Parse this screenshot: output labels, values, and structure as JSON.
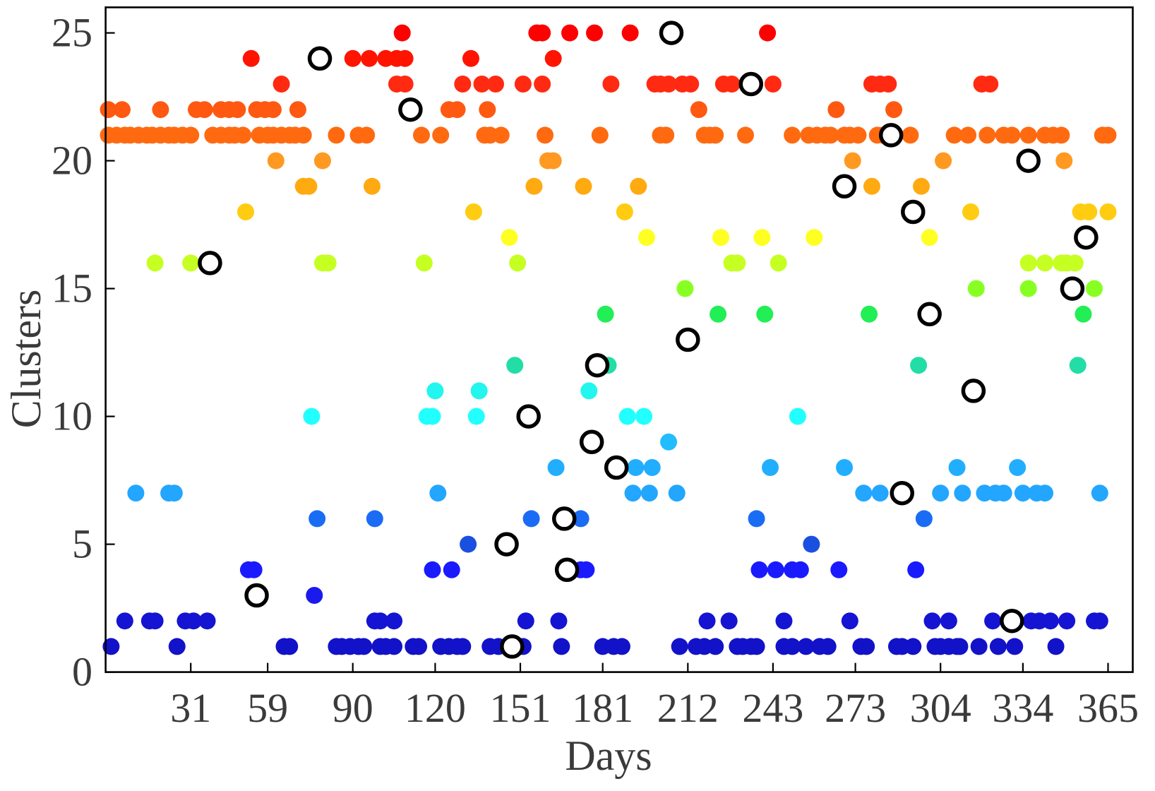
{
  "chart_data": {
    "type": "scatter",
    "xlabel": "Days",
    "ylabel": "Clusters",
    "xlim": [
      0,
      374
    ],
    "ylim": [
      0,
      26
    ],
    "xticks": [
      31,
      59,
      90,
      120,
      151,
      181,
      212,
      243,
      273,
      304,
      334,
      365
    ],
    "yticks": [
      0,
      5,
      10,
      15,
      20,
      25
    ],
    "grid": false,
    "legend": false,
    "colors": {
      "axes": "#000000",
      "text": "#3a3a3a",
      "open_circle_edge": "#000000",
      "open_circle_fill": "#ffffff",
      "cluster_colors": [
        "#1212c8",
        "#1414d2",
        "#1a1aee",
        "#1a1aff",
        "#1a50e0",
        "#1a6cf5",
        "#22a6ff",
        "#22aeff",
        "#22bcff",
        "#22ffff",
        "#22f6ee",
        "#22dda6",
        "#22e680",
        "#22ee55",
        "#88ff22",
        "#c6ff22",
        "#ffff22",
        "#ffcc11",
        "#ffaa11",
        "#ff9922",
        "#ff6a11",
        "#ff5811",
        "#ff2a11",
        "#ff1400",
        "#ff0000"
      ]
    },
    "filled_points": [
      {
        "y": 1,
        "x": [
          2,
          26,
          65,
          67,
          84,
          86,
          89,
          92,
          94,
          100,
          102,
          105,
          112,
          114,
          122,
          125,
          128,
          130,
          140,
          143,
          149,
          152,
          166,
          181,
          185,
          188,
          209,
          215,
          218,
          222,
          230,
          232,
          235,
          237,
          247,
          250,
          255,
          260,
          263,
          275,
          277,
          288,
          290,
          294,
          302,
          304,
          307,
          310,
          311,
          318,
          325,
          331,
          346
        ]
      },
      {
        "y": 2,
        "x": [
          7,
          16,
          18,
          29,
          32,
          37,
          98,
          100,
          105,
          153,
          165,
          219,
          227,
          247,
          271,
          301,
          307,
          323,
          337,
          340,
          344,
          350,
          360,
          362
        ]
      },
      {
        "y": 3,
        "x": [
          76
        ]
      },
      {
        "y": 4,
        "x": [
          52,
          54,
          119,
          126,
          173,
          175,
          238,
          244,
          250,
          253,
          267,
          295
        ]
      },
      {
        "y": 5,
        "x": [
          132,
          257
        ]
      },
      {
        "y": 6,
        "x": [
          77,
          98,
          155,
          173,
          237,
          298
        ]
      },
      {
        "y": 7,
        "x": [
          11,
          23,
          25,
          121,
          192,
          198,
          208,
          276,
          282,
          304,
          312,
          320,
          324,
          327,
          334,
          339,
          342,
          362
        ]
      },
      {
        "y": 8,
        "x": [
          164,
          193,
          199,
          242,
          269,
          310,
          332
        ]
      },
      {
        "y": 9,
        "x": [
          205
        ]
      },
      {
        "y": 10,
        "x": [
          75,
          117,
          119,
          135,
          190,
          196,
          252
        ]
      },
      {
        "y": 11,
        "x": [
          120,
          136,
          176
        ]
      },
      {
        "y": 12,
        "x": [
          149,
          183,
          296,
          354
        ]
      },
      {
        "y": 14,
        "x": [
          182,
          223,
          240,
          278,
          356
        ]
      },
      {
        "y": 15,
        "x": [
          211,
          317,
          336,
          360
        ]
      },
      {
        "y": 16,
        "x": [
          18,
          31,
          79,
          81,
          116,
          150,
          228,
          230,
          245,
          336,
          342,
          348,
          350,
          353
        ]
      },
      {
        "y": 17,
        "x": [
          147,
          197,
          224,
          239,
          258,
          300
        ]
      },
      {
        "y": 18,
        "x": [
          51,
          134,
          189,
          315,
          355,
          358,
          365
        ]
      },
      {
        "y": 19,
        "x": [
          72,
          74,
          97,
          156,
          174,
          194,
          279,
          297
        ]
      },
      {
        "y": 20,
        "x": [
          62,
          79,
          161,
          163,
          272,
          305,
          349
        ]
      },
      {
        "y": 21,
        "x": [
          1,
          4,
          7,
          9,
          12,
          15,
          17,
          20,
          23,
          25,
          28,
          31,
          39,
          42,
          45,
          47,
          50,
          56,
          59,
          61,
          64,
          67,
          69,
          72,
          84,
          92,
          95,
          115,
          122,
          138,
          140,
          144,
          160,
          180,
          202,
          204,
          218,
          220,
          222,
          233,
          250,
          256,
          259,
          262,
          264,
          269,
          271,
          274,
          281,
          283,
          293,
          309,
          314,
          321,
          327,
          330,
          336,
          342,
          345,
          348,
          363,
          365
        ]
      },
      {
        "y": 22,
        "x": [
          1,
          6,
          20,
          33,
          36,
          42,
          45,
          48,
          55,
          58,
          61,
          70,
          125,
          128,
          139,
          216,
          266,
          287
        ]
      },
      {
        "y": 23,
        "x": [
          64,
          106,
          109,
          130,
          137,
          142,
          152,
          159,
          184,
          200,
          202,
          205,
          210,
          213,
          225,
          228,
          243,
          279,
          282,
          285,
          319,
          322
        ]
      },
      {
        "y": 24,
        "x": [
          53,
          90,
          96,
          102,
          106,
          109,
          133,
          163
        ]
      },
      {
        "y": 25,
        "x": [
          108,
          157,
          159,
          169,
          178,
          191,
          241
        ]
      }
    ],
    "open_circle_points": [
      [
        38,
        16
      ],
      [
        55,
        3
      ],
      [
        78,
        24
      ],
      [
        111,
        22
      ],
      [
        146,
        5
      ],
      [
        148,
        1
      ],
      [
        154,
        10
      ],
      [
        167,
        6
      ],
      [
        168,
        4
      ],
      [
        177,
        9
      ],
      [
        179,
        12
      ],
      [
        186,
        8
      ],
      [
        206,
        25
      ],
      [
        212,
        13
      ],
      [
        235,
        23
      ],
      [
        269,
        19
      ],
      [
        286,
        21
      ],
      [
        290,
        7
      ],
      [
        294,
        18
      ],
      [
        300,
        14
      ],
      [
        316,
        11
      ],
      [
        330,
        2
      ],
      [
        336,
        20
      ],
      [
        352,
        15
      ],
      [
        357,
        17
      ]
    ]
  }
}
